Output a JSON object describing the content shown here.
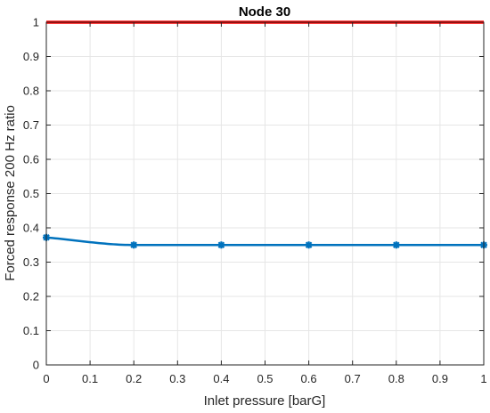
{
  "chart_data": {
    "type": "line",
    "title": "Node 30",
    "xlabel": "Inlet pressure [barG]",
    "ylabel": "Forced response 200 Hz ratio",
    "xlim": [
      0,
      1
    ],
    "ylim": [
      0,
      1
    ],
    "xticks": [
      "0",
      "0.1",
      "0.2",
      "0.3",
      "0.4",
      "0.5",
      "0.6",
      "0.7",
      "0.8",
      "0.9",
      "1"
    ],
    "yticks": [
      "0",
      "0.1",
      "0.2",
      "0.3",
      "0.4",
      "0.5",
      "0.6",
      "0.7",
      "0.8",
      "0.9",
      "1"
    ],
    "grid": true,
    "series": [
      {
        "color": "#0072bd",
        "marker": "asterisk",
        "x": [
          0,
          0.2,
          0.4,
          0.6,
          0.8,
          1
        ],
        "y": [
          0.372,
          0.35,
          0.35,
          0.35,
          0.35,
          0.35
        ]
      },
      {
        "color": "#ff0000",
        "marker": "none",
        "x": [
          0,
          1
        ],
        "y": [
          1,
          1
        ]
      }
    ]
  }
}
